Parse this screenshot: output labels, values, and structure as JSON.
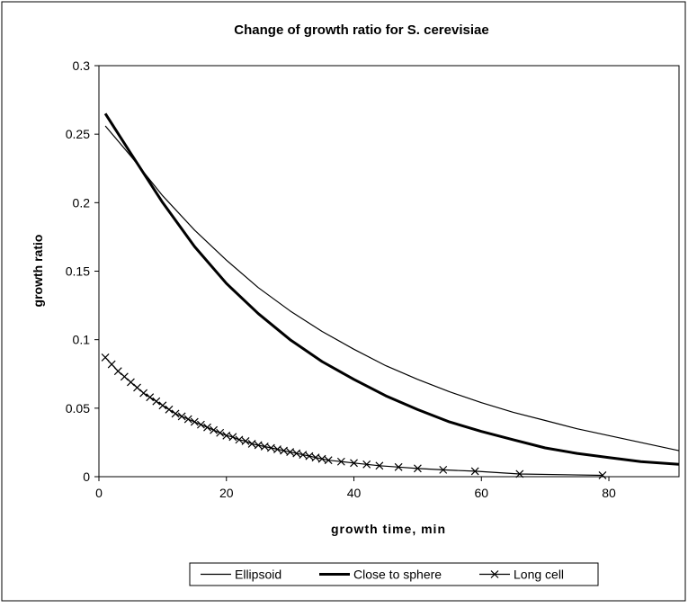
{
  "chart_data": {
    "type": "line",
    "title": "Change of growth ratio for S. cerevisiae",
    "xlabel": "growth time, min",
    "ylabel": "growth ratio",
    "xlim": [
      0,
      91
    ],
    "ylim": [
      0,
      0.3
    ],
    "x_ticks": [
      "0",
      "20",
      "40",
      "60",
      "80"
    ],
    "y_ticks": [
      "0",
      "0.05",
      "0.1",
      "0.15",
      "0.2",
      "0.25",
      "0.3"
    ],
    "grid": false,
    "legend_position": "bottom",
    "series": [
      {
        "name": "Ellipsoid",
        "style": "thin-line",
        "color": "#000000",
        "x": [
          1,
          5,
          10,
          15,
          20,
          25,
          30,
          35,
          40,
          45,
          50,
          55,
          60,
          65,
          70,
          75,
          80,
          85,
          91
        ],
        "y": [
          0.256,
          0.234,
          0.205,
          0.18,
          0.158,
          0.138,
          0.121,
          0.106,
          0.093,
          0.081,
          0.071,
          0.062,
          0.054,
          0.047,
          0.041,
          0.035,
          0.03,
          0.025,
          0.019
        ]
      },
      {
        "name": "Close to sphere",
        "style": "thick-line",
        "color": "#000000",
        "x": [
          1,
          5,
          10,
          15,
          20,
          25,
          30,
          35,
          40,
          45,
          50,
          55,
          60,
          65,
          70,
          75,
          80,
          85,
          91
        ],
        "y": [
          0.265,
          0.236,
          0.2,
          0.168,
          0.141,
          0.119,
          0.1,
          0.084,
          0.071,
          0.059,
          0.049,
          0.04,
          0.033,
          0.027,
          0.021,
          0.017,
          0.014,
          0.011,
          0.009
        ]
      },
      {
        "name": "Long cell",
        "style": "line-with-x-markers",
        "color": "#000000",
        "x": [
          1,
          2,
          3,
          4,
          5,
          6,
          7,
          8,
          9,
          10,
          11,
          12,
          13,
          14,
          15,
          16,
          17,
          18,
          19,
          20,
          21,
          22,
          23,
          24,
          25,
          26,
          27,
          28,
          29,
          30,
          31,
          32,
          33,
          34,
          35,
          36,
          38,
          40,
          42,
          44,
          47,
          50,
          54,
          59,
          66,
          79
        ],
        "y": [
          0.087,
          0.082,
          0.077,
          0.073,
          0.069,
          0.065,
          0.061,
          0.058,
          0.055,
          0.052,
          0.049,
          0.046,
          0.044,
          0.042,
          0.04,
          0.038,
          0.036,
          0.034,
          0.032,
          0.03,
          0.029,
          0.027,
          0.026,
          0.024,
          0.023,
          0.022,
          0.021,
          0.02,
          0.019,
          0.018,
          0.017,
          0.016,
          0.015,
          0.014,
          0.013,
          0.012,
          0.011,
          0.01,
          0.009,
          0.008,
          0.007,
          0.006,
          0.005,
          0.004,
          0.002,
          0.001
        ]
      }
    ]
  }
}
